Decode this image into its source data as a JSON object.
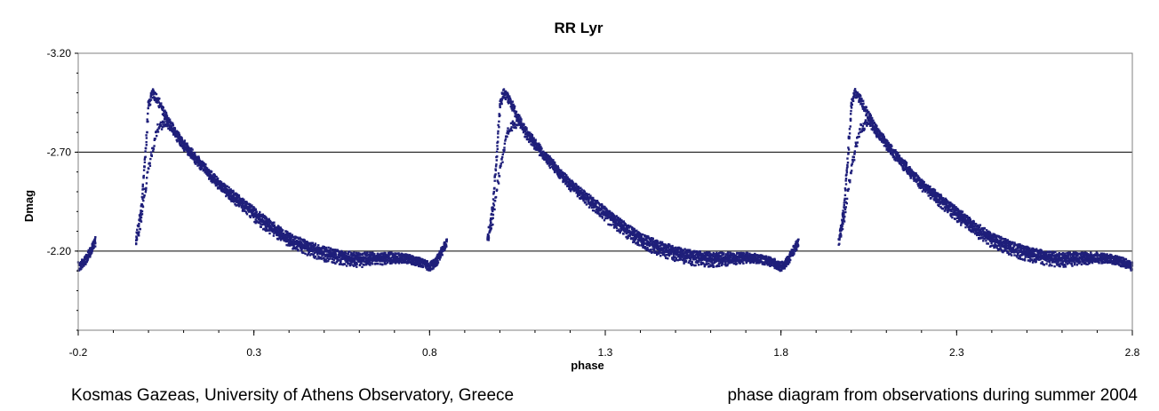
{
  "chart_data": {
    "type": "scatter",
    "title": "RR Lyr",
    "xlabel": "phase",
    "ylabel": "Dmag",
    "xlim": [
      -0.2,
      2.8
    ],
    "ylim": [
      -3.2,
      -1.8
    ],
    "y_inverted": true,
    "x_ticks": [
      "-0.2",
      "0.3",
      "0.8",
      "1.3",
      "1.8",
      "2.3",
      "2.8"
    ],
    "y_ticks": [
      "-3.20",
      "-2.70",
      "-2.20"
    ],
    "grid": "horizontal major lines at -2.70 and -2.20",
    "legend": "none",
    "marker_color": "#1f1f7a",
    "cycles_shown": [
      -1,
      0,
      1,
      2
    ],
    "template": {
      "x": [
        -0.035,
        -0.02,
        -0.01,
        0.0,
        0.01,
        0.025,
        0.05,
        0.08,
        0.12,
        0.16,
        0.2,
        0.25,
        0.3,
        0.35,
        0.4,
        0.45,
        0.5,
        0.55,
        0.6,
        0.65,
        0.7,
        0.74,
        0.78,
        0.8,
        0.82,
        0.835,
        0.85
      ],
      "y_main": [
        -2.25,
        -2.42,
        -2.66,
        -2.93,
        -3.0,
        -2.97,
        -2.88,
        -2.79,
        -2.7,
        -2.62,
        -2.54,
        -2.47,
        -2.4,
        -2.33,
        -2.27,
        -2.23,
        -2.2,
        -2.18,
        -2.17,
        -2.17,
        -2.17,
        -2.16,
        -2.14,
        -2.12,
        -2.15,
        -2.2,
        -2.25
      ],
      "y_alt": [
        -2.25,
        -2.36,
        -2.5,
        -2.61,
        -2.7,
        -2.82,
        -2.85,
        -2.78,
        -2.69,
        -2.61,
        -2.53,
        -2.45,
        -2.37,
        -2.3,
        -2.24,
        -2.2,
        -2.17,
        -2.15,
        -2.14,
        -2.15,
        -2.16,
        -2.16,
        -2.14,
        -2.12,
        -2.15,
        -2.2,
        -2.25
      ]
    }
  },
  "footer": {
    "left": "Kosmas Gazeas, University of Athens Observatory, Greece",
    "right": "phase diagram from observations during summer 2004"
  }
}
